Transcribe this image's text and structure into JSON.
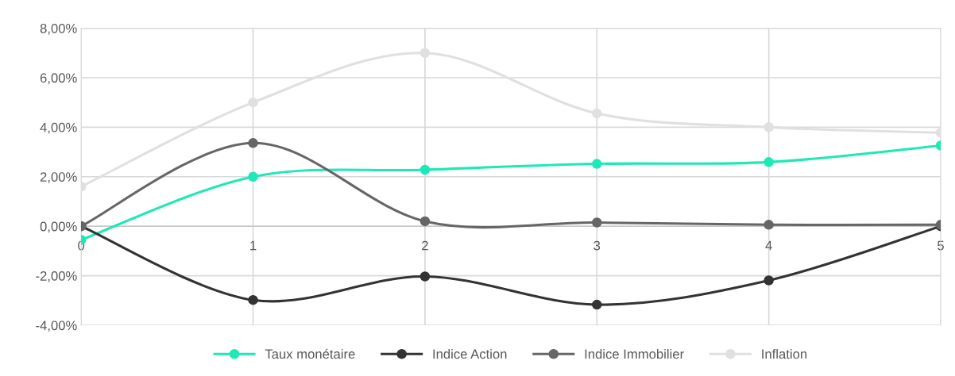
{
  "chart_data": {
    "type": "line",
    "x": [
      0,
      1,
      2,
      3,
      4,
      5
    ],
    "series": [
      {
        "name": "Taux monétaire",
        "color": "#1de9b6",
        "values": [
          -0.55,
          2.0,
          2.28,
          2.52,
          2.59,
          3.26
        ]
      },
      {
        "name": "Indice Action",
        "color": "#333333",
        "values": [
          0,
          -2.98,
          -2.03,
          -3.17,
          -2.19,
          0
        ]
      },
      {
        "name": "Indice Immobilier",
        "color": "#666666",
        "values": [
          0,
          3.36,
          0.2,
          0.15,
          0.06,
          0.06
        ]
      },
      {
        "name": "Inflation",
        "color": "#e0e0e0",
        "values": [
          1.6,
          5.0,
          7.0,
          4.56,
          4.0,
          3.78
        ]
      }
    ],
    "xlim": [
      0,
      5
    ],
    "xticks": [
      0,
      1,
      2,
      3,
      4,
      5
    ],
    "ylim": [
      -4,
      8
    ],
    "yticks": [
      {
        "value": -4,
        "label": "-4,00%"
      },
      {
        "value": -2,
        "label": "-2,00%"
      },
      {
        "value": 0,
        "label": "0,00%"
      },
      {
        "value": 2,
        "label": "2,00%"
      },
      {
        "value": 4,
        "label": "4,00%"
      },
      {
        "value": 6,
        "label": "6,00%"
      },
      {
        "value": 8,
        "label": "8,00%"
      }
    ],
    "grid": true,
    "legend": "bottom",
    "marker": "circle",
    "line_style": "solid"
  }
}
